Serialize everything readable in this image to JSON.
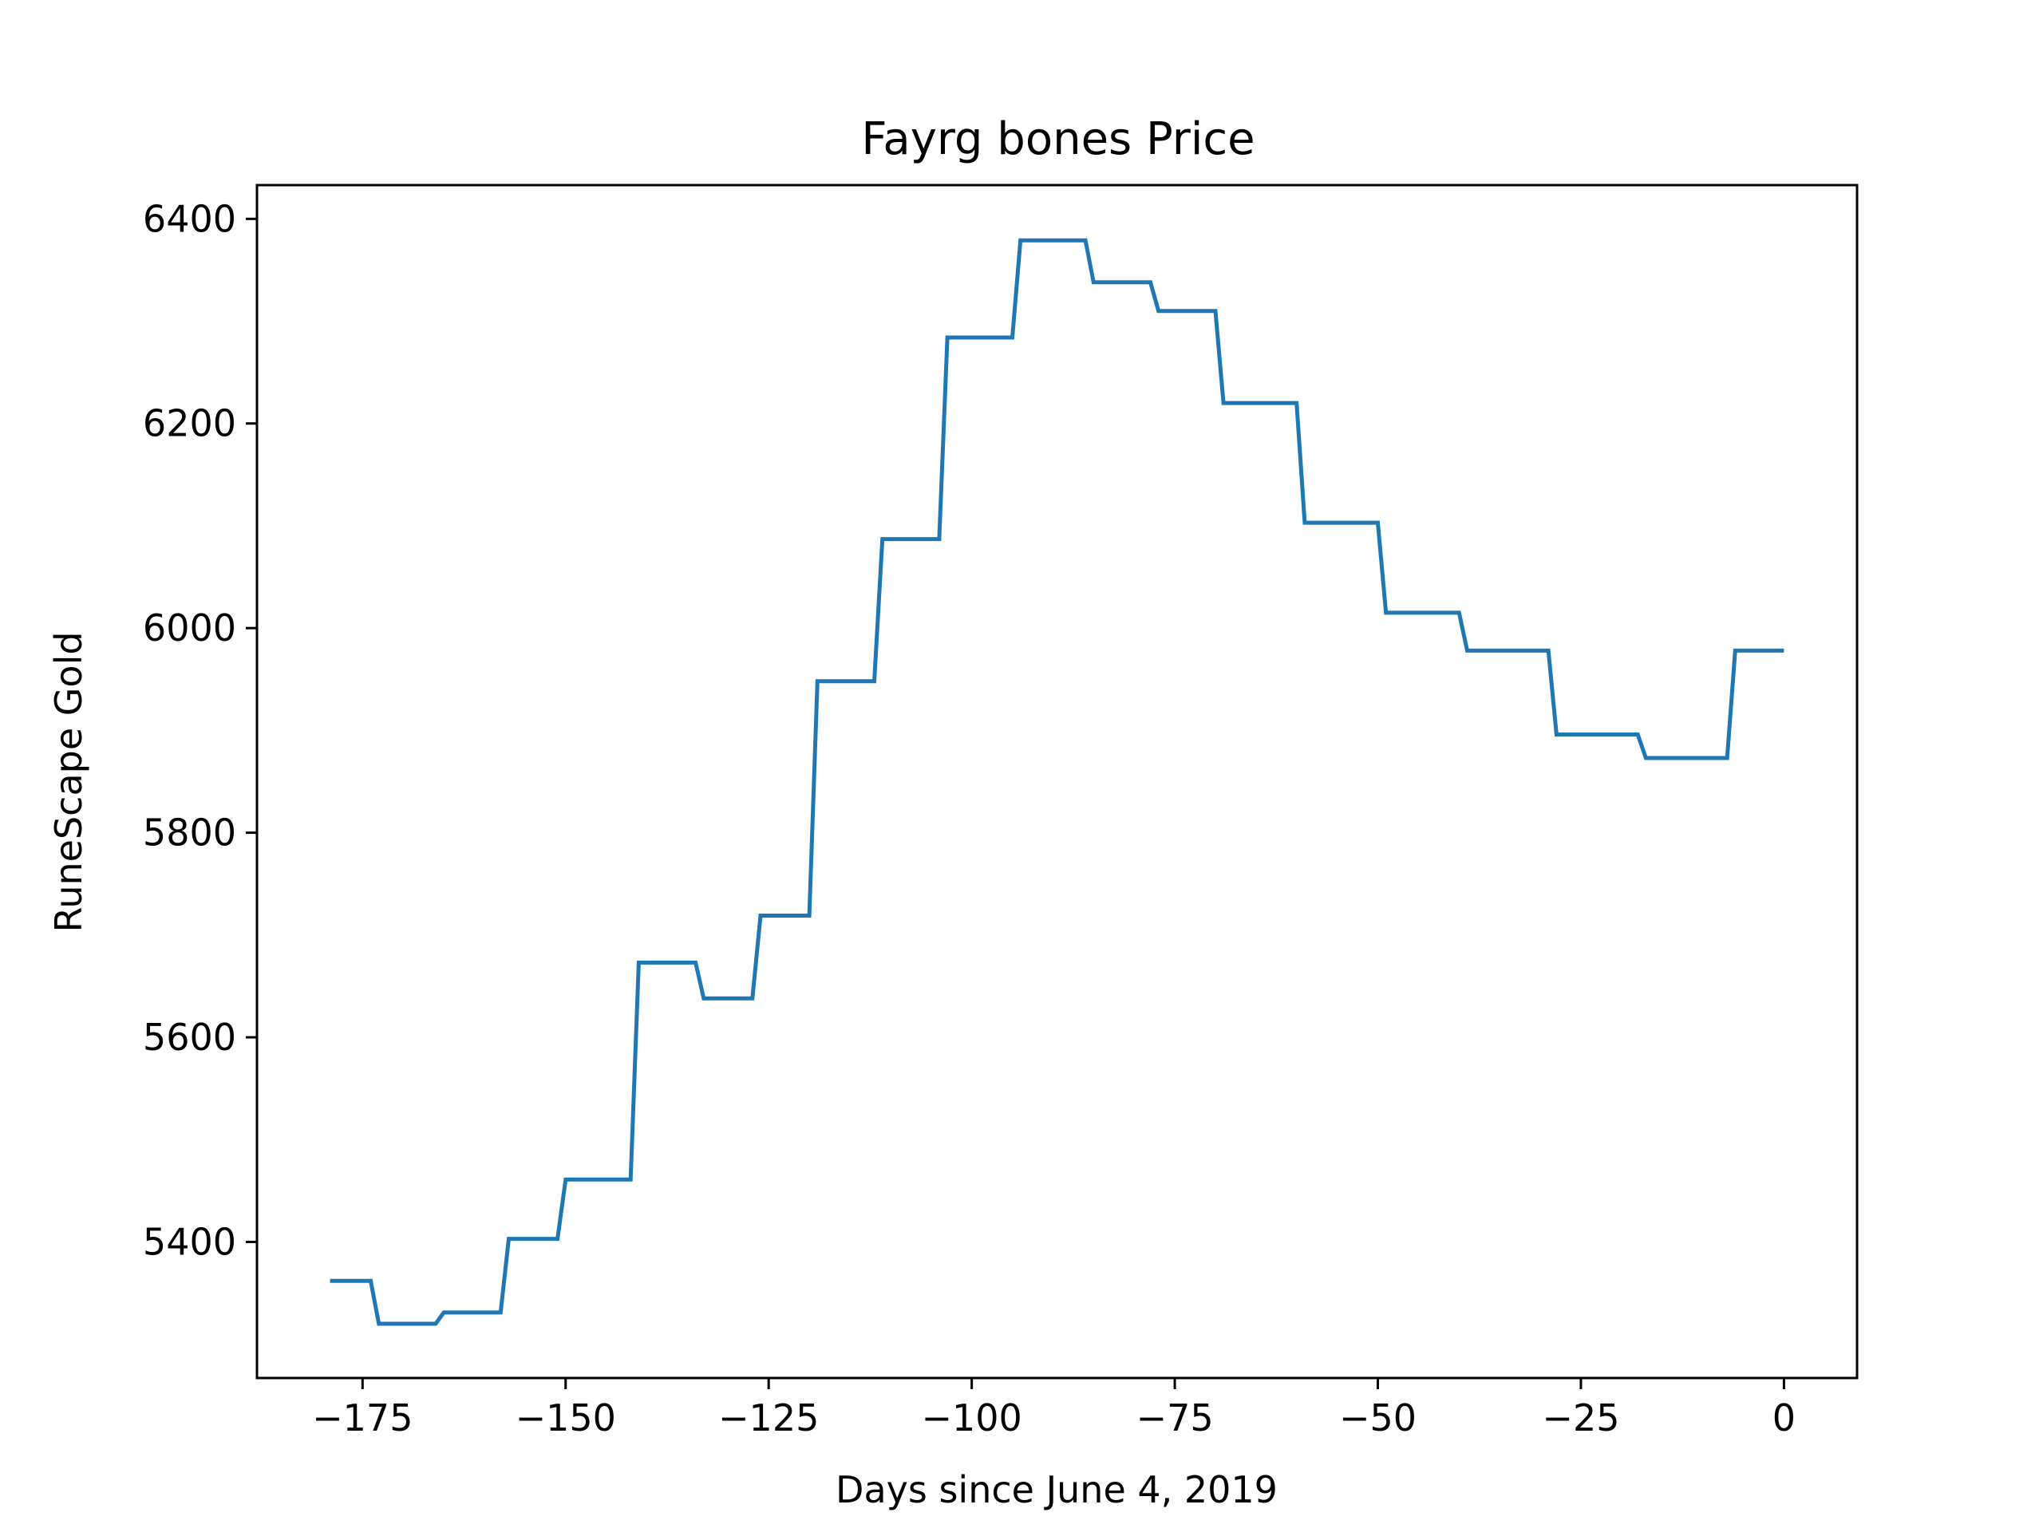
{
  "chart_data": {
    "type": "line",
    "title": "Fayrg bones Price",
    "xlabel": "Days since June 4, 2019",
    "ylabel": "RuneScape Gold",
    "xlim": [
      -188,
      9
    ],
    "ylim": [
      5267,
      6433
    ],
    "xticks": [
      -175,
      -150,
      -125,
      -100,
      -75,
      -50,
      -25,
      0
    ],
    "xtick_labels": [
      "−175",
      "−150",
      "−125",
      "−100",
      "−75",
      "−50",
      "−25",
      "0"
    ],
    "yticks": [
      5400,
      5600,
      5800,
      6000,
      6200,
      6400
    ],
    "ytick_labels": [
      "5400",
      "5600",
      "5800",
      "6000",
      "6200",
      "6400"
    ],
    "grid": false,
    "line_color": "#1f77b4",
    "series": [
      {
        "x": [
          -179,
          -174,
          -173,
          -166,
          -165,
          -158,
          -157,
          -151,
          -150,
          -142,
          -141,
          -134,
          -133,
          -127,
          -126,
          -120,
          -119,
          -112,
          -111,
          -104,
          -103,
          -95,
          -94,
          -86,
          -85,
          -78,
          -77,
          -70,
          -69,
          -60,
          -59,
          -50,
          -49,
          -40,
          -39,
          -29,
          -28,
          -18,
          -17,
          -7,
          -6,
          0
        ],
        "y": [
          5362,
          5362,
          5320,
          5320,
          5331,
          5331,
          5403,
          5403,
          5461,
          5461,
          5673,
          5673,
          5638,
          5638,
          5719,
          5719,
          5948,
          5948,
          6087,
          6087,
          6284,
          6284,
          6379,
          6379,
          6338,
          6338,
          6310,
          6310,
          6220,
          6220,
          6103,
          6103,
          6015,
          6015,
          5978,
          5978,
          5896,
          5896,
          5873,
          5873,
          5978,
          5978
        ]
      }
    ]
  }
}
